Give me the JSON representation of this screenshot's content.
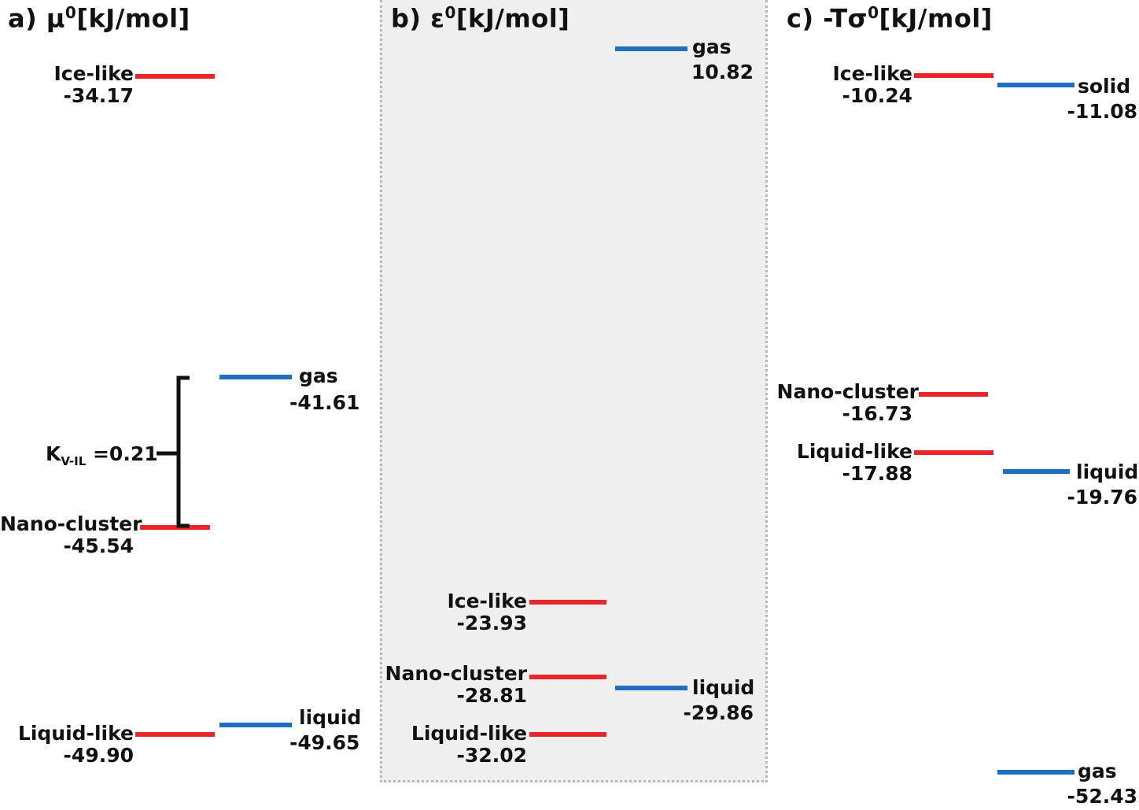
{
  "colors": {
    "adsorbed": "#e8262a",
    "bulk": "#1e6fbe",
    "panel_bg": "#efefef"
  },
  "panels": {
    "a": {
      "prefix": "a)",
      "symbol": "μ",
      "sup": "0",
      "unit": "[kJ/mol]",
      "levels": [
        {
          "name": "Ice-like",
          "value": "-34.17",
          "kind": "adsorbed"
        },
        {
          "name": "gas",
          "value": "-41.61",
          "kind": "bulk"
        },
        {
          "name": "Nano-cluster",
          "value": "-45.54",
          "kind": "adsorbed"
        },
        {
          "name": "Liquid-like",
          "value": "-49.90",
          "kind": "adsorbed"
        },
        {
          "name": "liquid",
          "value": "-49.65",
          "kind": "bulk"
        }
      ],
      "k": {
        "symbol": "K",
        "sub": "V-IL",
        "value": "=0.21"
      }
    },
    "b": {
      "prefix": "b)",
      "symbol": "ε",
      "sup": "0",
      "unit": "[kJ/mol]",
      "levels": [
        {
          "name": "gas",
          "value": "10.82",
          "kind": "bulk"
        },
        {
          "name": "Ice-like",
          "value": "-23.93",
          "kind": "adsorbed"
        },
        {
          "name": "Nano-cluster",
          "value": "-28.81",
          "kind": "adsorbed"
        },
        {
          "name": "liquid",
          "value": "-29.86",
          "kind": "bulk"
        },
        {
          "name": "Liquid-like",
          "value": "-32.02",
          "kind": "adsorbed"
        }
      ]
    },
    "c": {
      "prefix": "c)",
      "symbol": "-Tσ",
      "sup": "0",
      "unit": "[kJ/mol]",
      "levels": [
        {
          "name": "Ice-like",
          "value": "-10.24",
          "kind": "adsorbed"
        },
        {
          "name": "solid",
          "value": "-11.08",
          "kind": "bulk"
        },
        {
          "name": "Nano-cluster",
          "value": "-16.73",
          "kind": "adsorbed"
        },
        {
          "name": "Liquid-like",
          "value": "-17.88",
          "kind": "adsorbed"
        },
        {
          "name": "liquid",
          "value": "-19.76",
          "kind": "bulk"
        },
        {
          "name": "gas",
          "value": "-52.43",
          "kind": "bulk"
        }
      ]
    }
  }
}
